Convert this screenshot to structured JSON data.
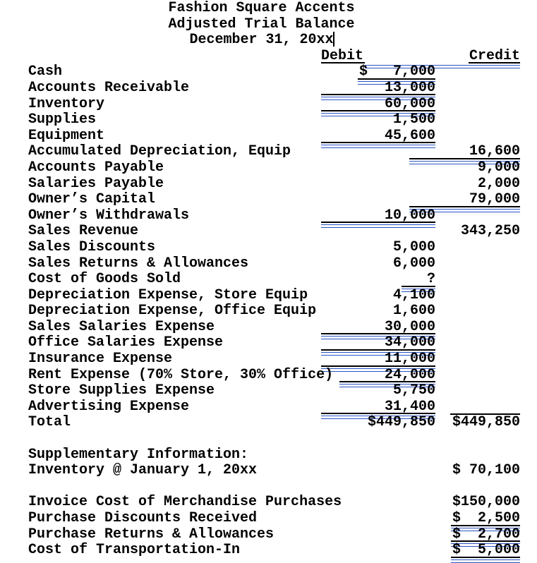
{
  "colors": {
    "ink": "#000000",
    "underline_blue": "#2a54c4",
    "background": "#ffffff"
  },
  "title": {
    "lines": [
      "Fashion Square Accents",
      "Adjusted Trial Balance",
      "December 31, 20xx"
    ]
  },
  "columns": {
    "debit_label": "Debit",
    "credit_label": "Credit"
  },
  "rows": [
    {
      "name": "Cash",
      "debit": "$   7,000",
      "credit": "",
      "du": "text",
      "cu": "none"
    },
    {
      "name": "Accounts Receivable",
      "debit": "13,000",
      "credit": "",
      "du": "full",
      "cu": "none"
    },
    {
      "name": "Inventory",
      "debit": "60,000",
      "credit": "",
      "du": "full",
      "cu": "none"
    },
    {
      "name": "Supplies",
      "debit": "1,500",
      "credit": "",
      "du": "none",
      "cu": "none"
    },
    {
      "name": "Equipment",
      "debit": "45,600",
      "credit": "",
      "du": "full",
      "cu": "none"
    },
    {
      "name": "Accumulated Depreciation, Equip",
      "debit": "",
      "credit": "16,600",
      "du": "none",
      "cu": "full"
    },
    {
      "name": "Accounts Payable",
      "debit": "",
      "credit": "9,000",
      "du": "none",
      "cu": "none"
    },
    {
      "name": "Salaries Payable",
      "debit": "",
      "credit": "2,000",
      "du": "none",
      "cu": "none"
    },
    {
      "name": "Owner’s Capital",
      "debit": "",
      "credit": "79,000",
      "du": "none",
      "cu": "full"
    },
    {
      "name": "Owner’s Withdrawals",
      "debit": "10,000",
      "credit": "",
      "du": "full",
      "cu": "none"
    },
    {
      "name": "Sales Revenue",
      "debit": "",
      "credit": "343,250",
      "du": "none",
      "cu": "none"
    },
    {
      "name": "Sales Discounts",
      "debit": "5,000",
      "credit": "",
      "du": "none",
      "cu": "none"
    },
    {
      "name": "Sales Returns & Allowances",
      "debit": "6,000",
      "credit": "",
      "du": "none",
      "cu": "none"
    },
    {
      "name": "Cost of Goods Sold",
      "debit": "?",
      "credit": "",
      "du": "short",
      "cu": "none"
    },
    {
      "name": "Depreciation Expense, Store Equip",
      "debit": "4,100",
      "credit": "",
      "du": "none",
      "cu": "none"
    },
    {
      "name": "Depreciation Expense, Office Equip",
      "debit": "1,600",
      "credit": "",
      "du": "none",
      "cu": "none"
    },
    {
      "name": "Sales Salaries Expense",
      "debit": "30,000",
      "credit": "",
      "du": "full",
      "cu": "none"
    },
    {
      "name": "Office Salaries Expense",
      "debit": "34,000",
      "credit": "",
      "du": "full",
      "cu": "none"
    },
    {
      "name": "Insurance Expense",
      "debit": "11,000",
      "credit": "",
      "du": "full",
      "cu": "none"
    },
    {
      "name": "Rent Expense (70% Store, 30% Office)",
      "debit": "24,000",
      "credit": "",
      "du": "full",
      "cu": "none"
    },
    {
      "name": "Store Supplies Expense",
      "debit": "5,750",
      "credit": "",
      "du": "none",
      "cu": "none"
    },
    {
      "name": "Advertising Expense",
      "debit": "31,400",
      "credit": "",
      "du": "full",
      "cu": "none"
    },
    {
      "name": "Total",
      "debit": "$449,850",
      "credit": "$449,850",
      "du": "none",
      "cu": "none",
      "credit_rule_above": true
    }
  ],
  "supplementary": {
    "heading": "Supplementary Information:",
    "items": [
      {
        "name": "Inventory @ January 1, 20xx",
        "amount": "$ 70,100",
        "underline": "none"
      }
    ]
  },
  "purchases": {
    "items": [
      {
        "name": "Invoice Cost of Merchandise Purchases",
        "amount": "$150,000",
        "underline": "none"
      },
      {
        "name": "Purchase Discounts Received",
        "amount": "$  2,500",
        "underline": "text"
      },
      {
        "name": "Purchase Returns & Allowances",
        "amount": "$  2,700",
        "underline": "text"
      },
      {
        "name": "Cost of Transportation-In",
        "amount": "$  5,000",
        "underline": "text"
      }
    ]
  }
}
